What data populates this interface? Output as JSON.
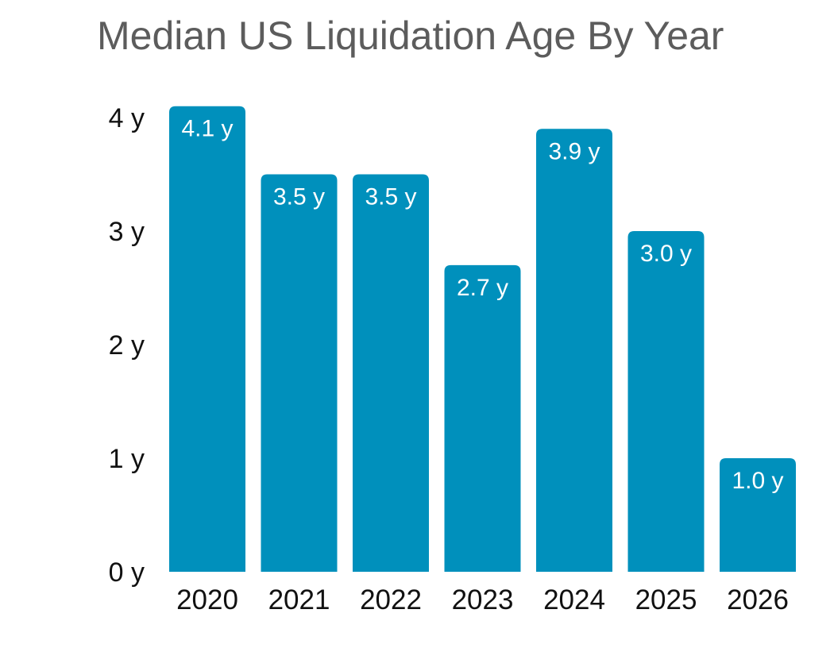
{
  "chart_data": {
    "type": "bar",
    "title": "Median US Liquidation Age By Year",
    "xlabel": "",
    "ylabel": "",
    "categories": [
      "2020",
      "2021",
      "2022",
      "2023",
      "2024",
      "2025",
      "2026"
    ],
    "values": [
      4.1,
      3.5,
      3.5,
      2.7,
      3.9,
      3.0,
      1.0
    ],
    "value_labels": [
      "4.1 y",
      "3.5 y",
      "3.5 y",
      "2.7 y",
      "3.9 y",
      "3.0 y",
      "1.0 y"
    ],
    "yticks": [
      0,
      1,
      2,
      3,
      4
    ],
    "ytick_labels": [
      "0 y",
      "1 y",
      "2 y",
      "3 y",
      "4 y"
    ],
    "ylim": [
      0,
      4.1
    ],
    "grid": false,
    "legend": "none",
    "colors": {
      "bar": "#0090bc",
      "title": "#5c5c5c",
      "text": "#111111",
      "label": "#ffffff"
    }
  }
}
